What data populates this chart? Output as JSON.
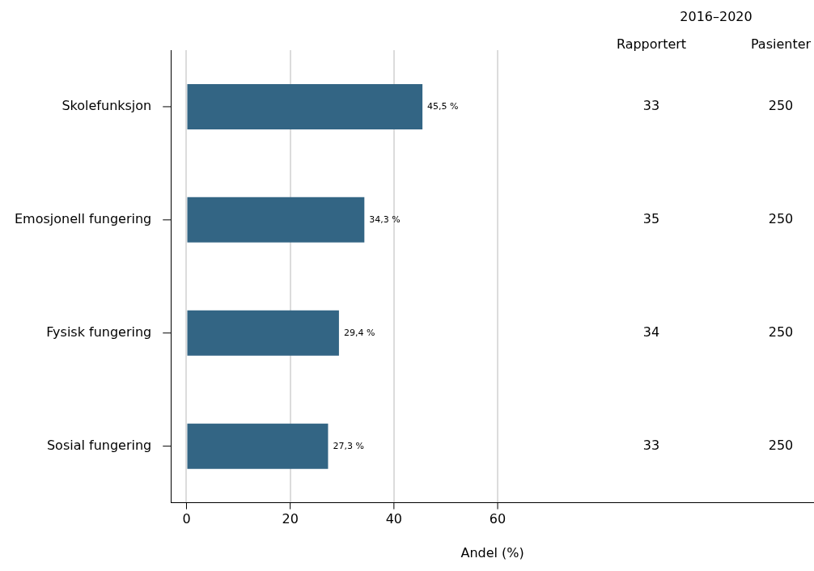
{
  "chart_data": {
    "type": "bar",
    "orientation": "horizontal",
    "categories": [
      "Skolefunksjon",
      "Emosjonell fungering",
      "Fysisk fungering",
      "Sosial fungering"
    ],
    "values": [
      45.5,
      34.3,
      29.4,
      27.3
    ],
    "color": "#336584",
    "value_labels": [
      "45,5 %",
      "34,3 %",
      "29,4 %",
      "27,3 %"
    ],
    "xlabel": "Andel (%)",
    "xlim": [
      -3,
      121
    ],
    "xticks": [
      0,
      20,
      40,
      60
    ],
    "grid": "x",
    "legend": false,
    "annotations": [
      "2016–2020",
      "Rapportert",
      "Pasienter",
      "33",
      "250",
      "35",
      "250",
      "34",
      "250",
      "33",
      "250"
    ]
  }
}
